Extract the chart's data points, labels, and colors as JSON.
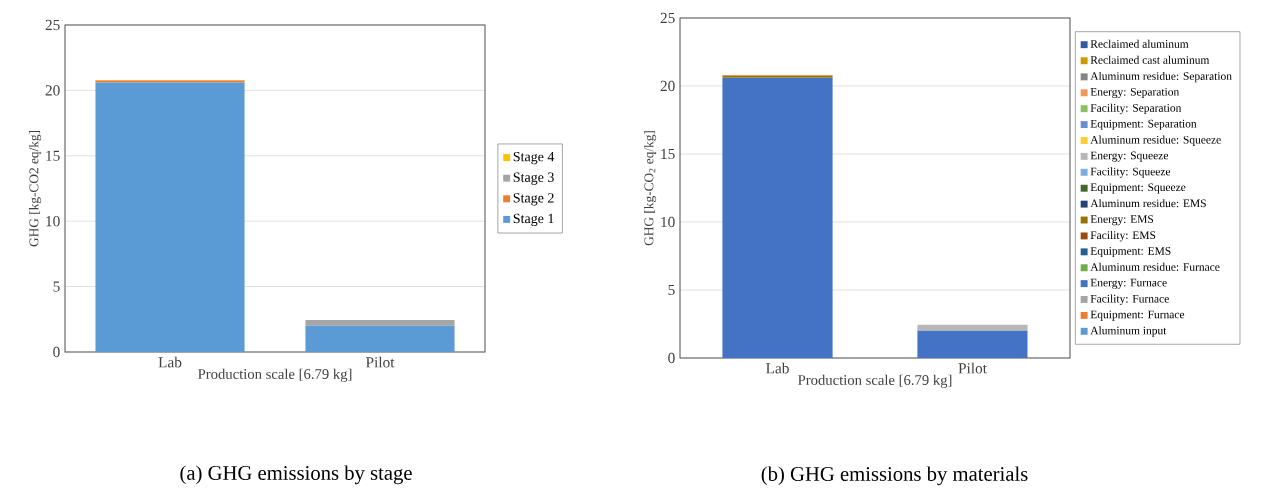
{
  "chart_data": [
    {
      "type": "bar",
      "stacked": true,
      "title": "(a)  GHG emissions by stage",
      "xlabel": "Production scale [6.79 kg]",
      "ylabel": "GHG [kg-CO2 eq/kg]",
      "categories": [
        "Lab",
        "Pilot"
      ],
      "ylim": [
        0,
        25
      ],
      "yticks": [
        0,
        5,
        10,
        15,
        20,
        25
      ],
      "grid": "y",
      "legend": "right",
      "series": [
        {
          "name": "Stage 1",
          "color": "#5b9bd5",
          "values": [
            20.6,
            2.0
          ]
        },
        {
          "name": "Stage 2",
          "color": "#ed7d31",
          "values": [
            0.15,
            null
          ]
        },
        {
          "name": "Stage 3",
          "color": "#a5a5a5",
          "values": [
            0,
            0.45
          ]
        },
        {
          "name": "Stage 4",
          "color": "#ffc000",
          "values": [
            0.05,
            null
          ]
        }
      ]
    },
    {
      "type": "bar",
      "stacked": true,
      "title": "(b) GHG emissions by materials",
      "xlabel": "Production scale [6.79 kg]",
      "ylabel": "GHG [kg-CO$_{2}$ eq/kg]",
      "categories": [
        "Lab",
        "Pilot"
      ],
      "ylim": [
        0,
        25
      ],
      "yticks": [
        0,
        5,
        10,
        15,
        20,
        25
      ],
      "grid": "y",
      "legend": "right",
      "series": [
        {
          "name": "Aluminum input",
          "color": "#5b9bd5",
          "values": [
            0,
            0
          ]
        },
        {
          "name": "Equipment: Furnace",
          "color": "#ed7d31",
          "values": [
            0,
            0
          ]
        },
        {
          "name": "Facility: Furnace",
          "color": "#a5a5a5",
          "values": [
            0,
            0
          ]
        },
        {
          "name": "Energy: Furnace",
          "color": "#4472c4",
          "values": [
            20.6,
            2.0
          ]
        },
        {
          "name": "Aluminum residue: Furnace",
          "color": "#70ad47",
          "values": [
            0,
            0
          ]
        },
        {
          "name": "Equipment: EMS",
          "color": "#255e91",
          "values": [
            0,
            0
          ]
        },
        {
          "name": "Facility: EMS",
          "color": "#9e480e",
          "values": [
            0,
            0
          ]
        },
        {
          "name": "Energy: EMS",
          "color": "#997300",
          "values": [
            0.15,
            null
          ]
        },
        {
          "name": "Aluminum residue: EMS",
          "color": "#264478",
          "values": [
            0,
            0
          ]
        },
        {
          "name": "Equipment: Squeeze",
          "color": "#43682b",
          "values": [
            0,
            0
          ]
        },
        {
          "name": "Facility: Squeeze",
          "color": "#7cafdd",
          "values": [
            0,
            0
          ]
        },
        {
          "name": "Energy: Squeeze",
          "color": "#b7b7b7",
          "values": [
            0,
            0.45
          ]
        },
        {
          "name": "Aluminum residue: Squeeze",
          "color": "#ffcd33",
          "values": [
            0,
            0
          ]
        },
        {
          "name": "Equipment: Separation",
          "color": "#698ed0",
          "values": [
            0,
            0
          ]
        },
        {
          "name": "Facility: Separation",
          "color": "#8cc168",
          "values": [
            0,
            0
          ]
        },
        {
          "name": "Energy: Separation",
          "color": "#f1975a",
          "values": [
            0.05,
            null
          ]
        },
        {
          "name": "Aluminum residue: Separation",
          "color": "#848484",
          "values": [
            0,
            0
          ]
        },
        {
          "name": "Reclaimed cast aluminum",
          "color": "#cc9a00",
          "values": [
            0,
            0
          ]
        },
        {
          "name": "Reclaimed aluminum",
          "color": "#335aa1",
          "values": [
            0,
            0
          ]
        }
      ]
    }
  ]
}
